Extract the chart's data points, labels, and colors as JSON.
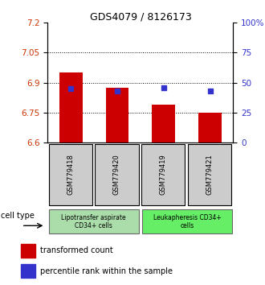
{
  "title": "GDS4079 / 8126173",
  "samples": [
    "GSM779418",
    "GSM779420",
    "GSM779419",
    "GSM779421"
  ],
  "red_values": [
    6.95,
    6.875,
    6.79,
    6.75
  ],
  "blue_values": [
    45,
    43,
    46,
    43
  ],
  "ylim_left": [
    6.6,
    7.2
  ],
  "ylim_right": [
    0,
    100
  ],
  "yticks_left": [
    6.6,
    6.75,
    6.9,
    7.05,
    7.2
  ],
  "yticks_right": [
    0,
    25,
    50,
    75,
    100
  ],
  "ytick_labels_right": [
    "0",
    "25",
    "50",
    "75",
    "100%"
  ],
  "grid_vals": [
    7.05,
    6.9,
    6.75
  ],
  "bar_color": "#cc0000",
  "dot_color": "#3333cc",
  "bar_width": 0.5,
  "group0_label": "Lipotransfer aspirate\nCD34+ cells",
  "group0_color": "#aaddaa",
  "group1_label": "Leukapheresis CD34+\ncells",
  "group1_color": "#66ee66",
  "cell_type_label": "cell type",
  "legend_red": "transformed count",
  "legend_blue": "percentile rank within the sample",
  "left_tick_color": "#cc3300",
  "right_tick_color": "#3333cc",
  "sample_box_color": "#cccccc",
  "title_fontsize": 9
}
